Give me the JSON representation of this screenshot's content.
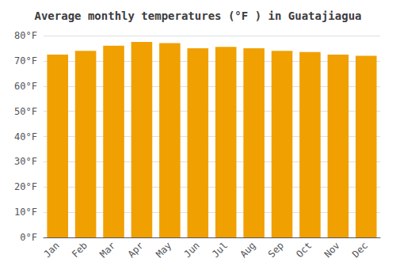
{
  "chart_data": {
    "type": "bar",
    "title": "Average monthly temperatures (°F ) in Guatajiagua",
    "categories": [
      "Jan",
      "Feb",
      "Mar",
      "Apr",
      "May",
      "Jun",
      "Jul",
      "Aug",
      "Sep",
      "Oct",
      "Nov",
      "Dec"
    ],
    "values": [
      72.5,
      74.0,
      76.0,
      77.5,
      77.0,
      75.0,
      75.5,
      75.0,
      74.0,
      73.5,
      72.5,
      72.0
    ],
    "color": "#F0A000",
    "ylim": [
      0,
      80
    ],
    "yticks": [
      {
        "value": 0,
        "label": "0°F"
      },
      {
        "value": 10,
        "label": "10°F"
      },
      {
        "value": 20,
        "label": "20°F"
      },
      {
        "value": 30,
        "label": "30°F"
      },
      {
        "value": 40,
        "label": "40°F"
      },
      {
        "value": 50,
        "label": "50°F"
      },
      {
        "value": 60,
        "label": "60°F"
      },
      {
        "value": 70,
        "label": "70°F"
      },
      {
        "value": 80,
        "label": "80°F"
      }
    ],
    "grid": true
  }
}
